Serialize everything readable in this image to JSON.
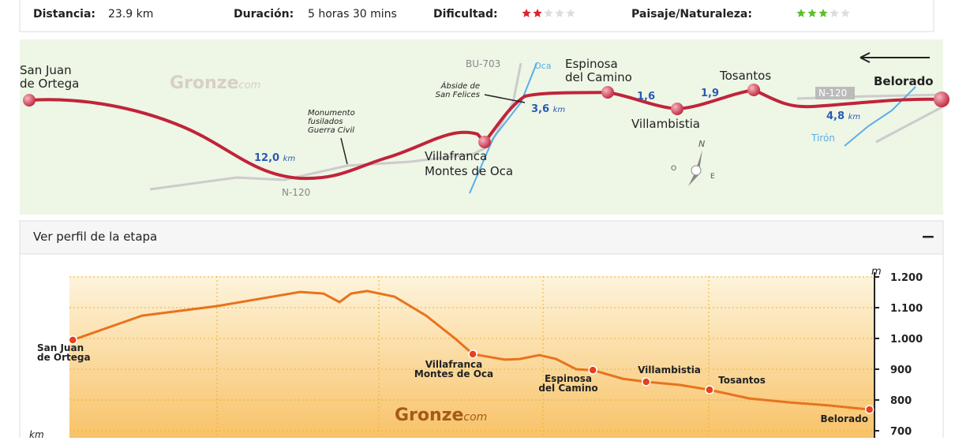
{
  "summary": {
    "distance": {
      "label": "Distancia:",
      "value": "23.9 km"
    },
    "duration": {
      "label": "Duración:",
      "value": "5 horas 30 mins"
    },
    "difficulty": {
      "label": "Dificultad:",
      "rating": 2,
      "max": 5,
      "color": "#e0202a"
    },
    "scenery": {
      "label": "Paisaje/Naturaleza:",
      "rating": 3,
      "max": 5,
      "color": "#5cc02a"
    }
  },
  "map": {
    "places": [
      {
        "lines": [
          "San Juan",
          "de Ortega"
        ]
      },
      {
        "lines": [
          "Espinosa",
          "del Camino"
        ]
      },
      {
        "lines": [
          "Tosantos"
        ]
      },
      {
        "lines": [
          "Belorado"
        ]
      },
      {
        "lines": [
          "Villambistia"
        ]
      },
      {
        "lines": [
          "Villafranca",
          "Montes de Oca"
        ]
      }
    ],
    "distances": [
      {
        "value": "12,0",
        "unit": "km"
      },
      {
        "value": "3,6",
        "unit": "km"
      },
      {
        "value": "1,6"
      },
      {
        "value": "1,9"
      },
      {
        "value": "4,8",
        "unit": "km"
      }
    ],
    "roads": [
      "BU-703",
      "N-120",
      "N-120"
    ],
    "rivers": [
      "Oca",
      "Tirón"
    ],
    "notes": [
      {
        "lines": [
          "Ábside de",
          "San Felices"
        ]
      },
      {
        "lines": [
          "Monumento",
          "fusilados",
          "Guerra Civil"
        ]
      }
    ],
    "brand": {
      "name": "Gronze",
      "suffix": "com"
    },
    "compass": {
      "n": "N",
      "w": "O",
      "e": "E"
    }
  },
  "panel": {
    "title": "Ver perfil de la etapa",
    "toggle": "−"
  },
  "chart_data": {
    "type": "line",
    "y_label": "m",
    "x_label": "km",
    "brand": {
      "name": "Gronze",
      "suffix": "com"
    },
    "color": "#e8731e",
    "x": [
      0,
      2.08,
      4.33,
      6.81,
      7.52,
      8.0,
      8.35,
      8.83,
      9.65,
      10.6,
      11.5,
      12.0,
      12.97,
      13.4,
      14.0,
      14.5,
      15.1,
      15.6,
      16.5,
      17.2,
      18.2,
      19.1,
      20.3,
      21.5,
      22.7,
      23.9
    ],
    "values": [
      995,
      1074,
      1105,
      1151,
      1146,
      1118,
      1146,
      1154,
      1136,
      1074,
      997,
      949,
      931,
      933,
      946,
      933,
      900,
      897,
      869,
      859,
      849,
      833,
      805,
      792,
      782,
      769
    ],
    "xlim": [
      -0.1,
      24.05
    ],
    "ylim": [
      700,
      1200
    ],
    "yticks": [
      {
        "value": 700,
        "label": "700"
      },
      {
        "value": 800,
        "label": "800"
      },
      {
        "value": 900,
        "label": "900"
      },
      {
        "value": 1000,
        "label": "1.000"
      },
      {
        "value": 1100,
        "label": "1.100"
      },
      {
        "value": 1200,
        "label": "1.200"
      }
    ],
    "grid": true,
    "waypoints": [
      {
        "lines": [
          "San Juan",
          "de Ortega"
        ],
        "x": 0,
        "value": 995
      },
      {
        "lines": [
          "Villafranca",
          "Montes de Oca"
        ],
        "x": 12.0,
        "value": 949
      },
      {
        "lines": [
          "Espinosa",
          "del Camino"
        ],
        "x": 15.6,
        "value": 897
      },
      {
        "lines": [
          "Villambistia"
        ],
        "x": 17.2,
        "value": 859
      },
      {
        "lines": [
          "Tosantos"
        ],
        "x": 19.1,
        "value": 833
      },
      {
        "lines": [
          "Belorado"
        ],
        "x": 23.9,
        "value": 769
      }
    ]
  }
}
